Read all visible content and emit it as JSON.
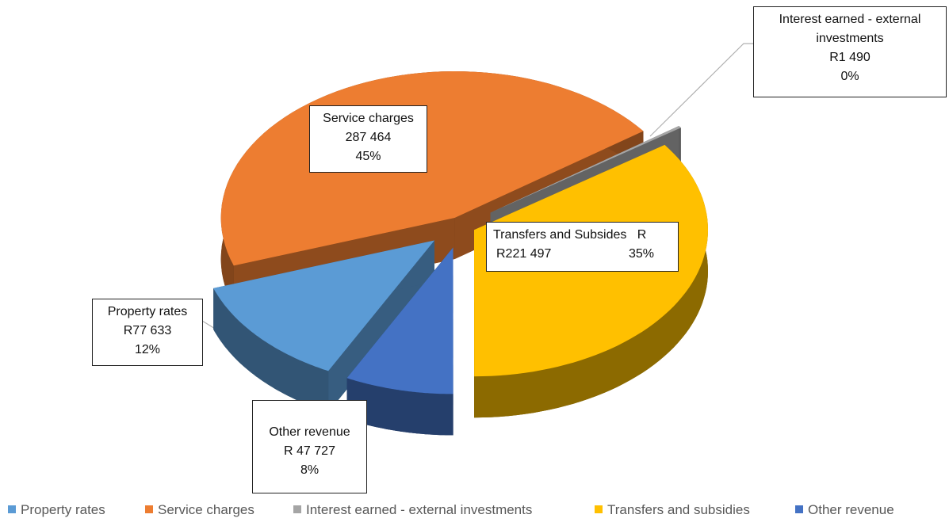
{
  "chart_data": {
    "type": "pie",
    "categories": [
      "Property rates",
      "Service charges",
      "Interest earned - external investments",
      "Transfers and subsidies",
      "Other revenue"
    ],
    "values": [
      77633,
      287464,
      1490,
      221497,
      47727
    ],
    "value_labels": [
      "R77 633",
      "287 464",
      "R1 490",
      "R221 497",
      "R 47 727"
    ],
    "percent_labels": [
      "12%",
      "45%",
      "0%",
      "35%",
      "8%"
    ],
    "data_label_names": [
      "Property rates",
      "Service charges",
      "Interest earned - external investments",
      "Transfers and Subsides   R",
      "Other revenue"
    ],
    "colors": [
      "#5b9bd5",
      "#ed7d31",
      "#a5a5a5",
      "#ffc000",
      "#4472c4"
    ],
    "legend": "bottom"
  }
}
